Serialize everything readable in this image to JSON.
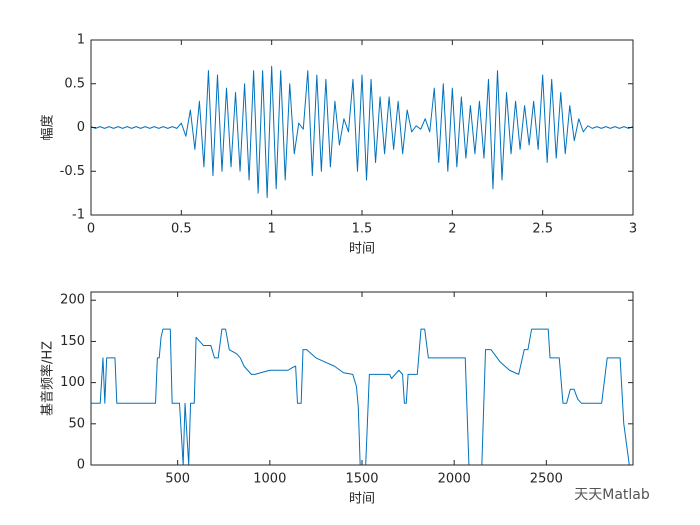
{
  "chart_data": [
    {
      "type": "line",
      "ylabel": "幅度",
      "xlabel": "时间",
      "color": "#0072bd",
      "xlim": [
        0,
        3
      ],
      "ylim": [
        -1,
        1
      ],
      "xticks": [
        0,
        0.5,
        1,
        1.5,
        2,
        2.5,
        3
      ],
      "yticks": [
        -1,
        -0.5,
        0,
        0.5,
        1
      ],
      "x": [
        0,
        0.025,
        0.05,
        0.075,
        0.1,
        0.125,
        0.15,
        0.175,
        0.2,
        0.225,
        0.25,
        0.275,
        0.3,
        0.325,
        0.35,
        0.375,
        0.4,
        0.425,
        0.45,
        0.475,
        0.5,
        0.525,
        0.55,
        0.575,
        0.6,
        0.625,
        0.65,
        0.675,
        0.7,
        0.725,
        0.75,
        0.775,
        0.8,
        0.825,
        0.85,
        0.875,
        0.9,
        0.925,
        0.95,
        0.975,
        1,
        1.025,
        1.05,
        1.075,
        1.1,
        1.125,
        1.15,
        1.175,
        1.2,
        1.225,
        1.25,
        1.275,
        1.3,
        1.325,
        1.35,
        1.375,
        1.4,
        1.425,
        1.45,
        1.475,
        1.5,
        1.525,
        1.55,
        1.575,
        1.6,
        1.625,
        1.65,
        1.675,
        1.7,
        1.725,
        1.75,
        1.775,
        1.8,
        1.825,
        1.85,
        1.875,
        1.9,
        1.925,
        1.95,
        1.975,
        2,
        2.025,
        2.05,
        2.075,
        2.1,
        2.125,
        2.15,
        2.175,
        2.2,
        2.225,
        2.25,
        2.275,
        2.3,
        2.325,
        2.35,
        2.375,
        2.4,
        2.425,
        2.45,
        2.475,
        2.5,
        2.525,
        2.55,
        2.575,
        2.6,
        2.625,
        2.65,
        2.675,
        2.7,
        2.725,
        2.75,
        2.775,
        2.8,
        2.825,
        2.85,
        2.875,
        2.9,
        2.925,
        2.95,
        2.975,
        3
      ],
      "values": [
        0.01,
        -0.01,
        0.01,
        -0.01,
        0.01,
        -0.01,
        0.01,
        -0.01,
        0.01,
        -0.01,
        0.01,
        -0.01,
        0.01,
        -0.01,
        0.01,
        -0.01,
        0.01,
        -0.01,
        0.01,
        -0.01,
        0.05,
        -0.1,
        0.2,
        -0.25,
        0.3,
        -0.45,
        0.65,
        -0.55,
        0.6,
        -0.5,
        0.45,
        -0.45,
        0.4,
        -0.5,
        0.5,
        -0.6,
        0.65,
        -0.75,
        0.65,
        -0.8,
        0.7,
        -0.7,
        0.65,
        -0.6,
        0.5,
        -0.3,
        0.05,
        -0.02,
        0.65,
        -0.55,
        0.6,
        -0.5,
        0.55,
        -0.45,
        0.3,
        -0.2,
        0.1,
        -0.05,
        0.55,
        -0.5,
        0.6,
        -0.6,
        0.55,
        -0.4,
        0.35,
        -0.3,
        0.35,
        -0.25,
        0.3,
        -0.3,
        0.2,
        -0.05,
        0.02,
        -0.02,
        0.1,
        -0.05,
        0.45,
        -0.4,
        0.5,
        -0.5,
        0.45,
        -0.45,
        0.35,
        -0.35,
        0.25,
        -0.3,
        0.3,
        -0.35,
        0.55,
        -0.7,
        0.65,
        -0.6,
        0.4,
        -0.3,
        0.3,
        -0.25,
        0.25,
        -0.2,
        0.3,
        -0.25,
        0.6,
        -0.4,
        0.55,
        -0.35,
        0.4,
        -0.3,
        0.25,
        -0.15,
        0.1,
        -0.05,
        0.02,
        -0.01,
        0.01,
        -0.01,
        0.01,
        -0.01,
        0.01,
        -0.01,
        0.01,
        -0.01,
        0.01
      ]
    },
    {
      "type": "line",
      "ylabel": "基音频率/HZ",
      "xlabel": "时间",
      "color": "#0072bd",
      "xlim": [
        30,
        2970
      ],
      "ylim": [
        0,
        210
      ],
      "xticks": [
        500,
        1000,
        1500,
        2000,
        2500
      ],
      "yticks": [
        0,
        50,
        100,
        150,
        200
      ],
      "x": [
        30,
        80,
        95,
        105,
        115,
        160,
        170,
        380,
        390,
        400,
        410,
        420,
        460,
        470,
        510,
        530,
        540,
        560,
        570,
        590,
        600,
        620,
        640,
        680,
        700,
        720,
        740,
        760,
        780,
        820,
        840,
        860,
        880,
        900,
        920,
        950,
        1000,
        1100,
        1120,
        1140,
        1150,
        1170,
        1180,
        1200,
        1250,
        1300,
        1350,
        1400,
        1450,
        1470,
        1480,
        1490,
        1520,
        1540,
        1650,
        1660,
        1680,
        1700,
        1720,
        1730,
        1740,
        1750,
        1800,
        1820,
        1840,
        1860,
        2060,
        2080,
        2150,
        2170,
        2200,
        2250,
        2300,
        2350,
        2380,
        2400,
        2420,
        2510,
        2520,
        2570,
        2590,
        2610,
        2630,
        2650,
        2670,
        2690,
        2800,
        2830,
        2900,
        2920,
        2950,
        2970
      ],
      "values": [
        75,
        75,
        130,
        75,
        130,
        130,
        75,
        75,
        130,
        130,
        155,
        165,
        165,
        75,
        75,
        0,
        75,
        0,
        75,
        75,
        155,
        150,
        145,
        145,
        130,
        130,
        165,
        165,
        140,
        135,
        130,
        120,
        115,
        110,
        110,
        112,
        115,
        115,
        118,
        120,
        75,
        75,
        140,
        140,
        130,
        125,
        120,
        112,
        110,
        95,
        70,
        0,
        0,
        110,
        110,
        105,
        110,
        115,
        110,
        75,
        75,
        110,
        110,
        165,
        165,
        130,
        130,
        0,
        0,
        140,
        140,
        125,
        115,
        110,
        140,
        140,
        165,
        165,
        130,
        130,
        75,
        75,
        92,
        92,
        80,
        75,
        75,
        130,
        130,
        50,
        0,
        0
      ]
    }
  ],
  "watermark": "天天Matlab"
}
